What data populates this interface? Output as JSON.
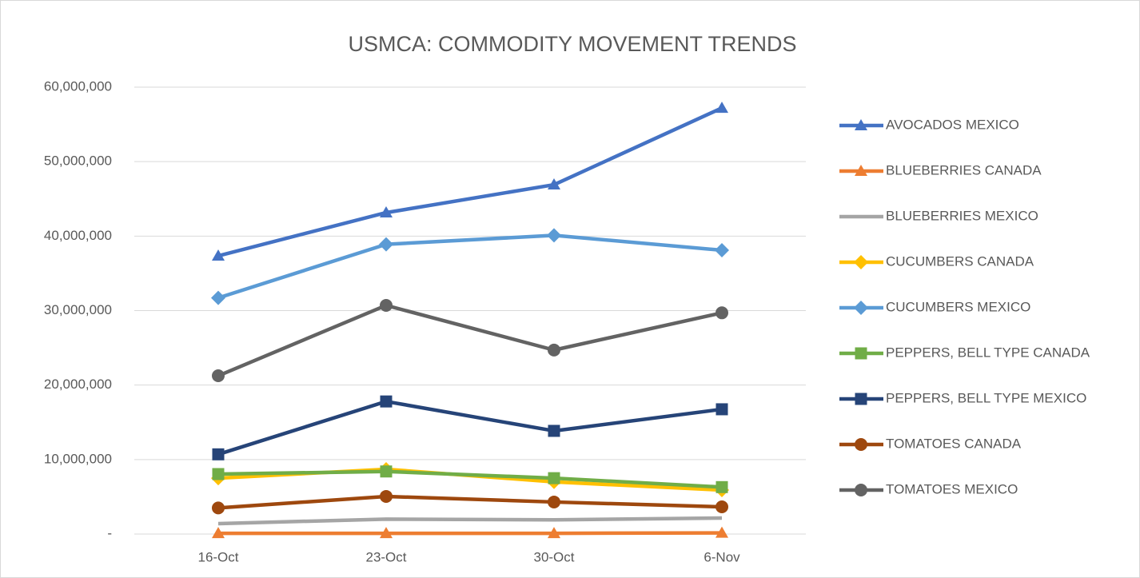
{
  "chart_data": {
    "type": "line",
    "title": "USMCA: COMMODITY MOVEMENT TRENDS",
    "categories": [
      "16-Oct",
      "23-Oct",
      "30-Oct",
      "6-Nov"
    ],
    "series": [
      {
        "name": "AVOCADOS MEXICO",
        "color": "#4472c4",
        "marker": "triangle",
        "values": [
          37350000,
          43150000,
          46900000,
          57200000
        ]
      },
      {
        "name": "BLUEBERRIES CANADA",
        "color": "#ed7d31",
        "marker": "triangle",
        "values": [
          100000,
          100000,
          100000,
          150000
        ]
      },
      {
        "name": "BLUEBERRIES MEXICO",
        "color": "#a5a5a5",
        "marker": "none",
        "values": [
          1400000,
          2000000,
          1900000,
          2150000
        ]
      },
      {
        "name": "CUCUMBERS CANADA",
        "color": "#ffc000",
        "marker": "diamond",
        "values": [
          7500000,
          8700000,
          7000000,
          5900000
        ]
      },
      {
        "name": "CUCUMBERS MEXICO",
        "color": "#5b9bd5",
        "marker": "diamond",
        "values": [
          31700000,
          38900000,
          40100000,
          38100000
        ]
      },
      {
        "name": "PEPPERS, BELL TYPE CANADA",
        "color": "#70ad47",
        "marker": "square",
        "values": [
          8050000,
          8400000,
          7500000,
          6300000
        ]
      },
      {
        "name": "PEPPERS, BELL TYPE MEXICO",
        "color": "#264478",
        "marker": "square",
        "values": [
          10700000,
          17800000,
          13850000,
          16750000
        ]
      },
      {
        "name": "TOMATOES CANADA",
        "color": "#9e480e",
        "marker": "circle",
        "values": [
          3500000,
          5050000,
          4300000,
          3650000
        ]
      },
      {
        "name": "TOMATOES MEXICO",
        "color": "#636363",
        "marker": "circle",
        "values": [
          21250000,
          30700000,
          24700000,
          29700000
        ]
      }
    ],
    "ylim": [
      0,
      60000000
    ],
    "yticks": [
      {
        "value": 0,
        "label": "-"
      },
      {
        "value": 10000000,
        "label": "10,000,000"
      },
      {
        "value": 20000000,
        "label": "20,000,000"
      },
      {
        "value": 30000000,
        "label": "30,000,000"
      },
      {
        "value": 40000000,
        "label": "40,000,000"
      },
      {
        "value": 50000000,
        "label": "50,000,000"
      },
      {
        "value": 60000000,
        "label": "60,000,000"
      }
    ],
    "grid": true,
    "legend": "right"
  }
}
